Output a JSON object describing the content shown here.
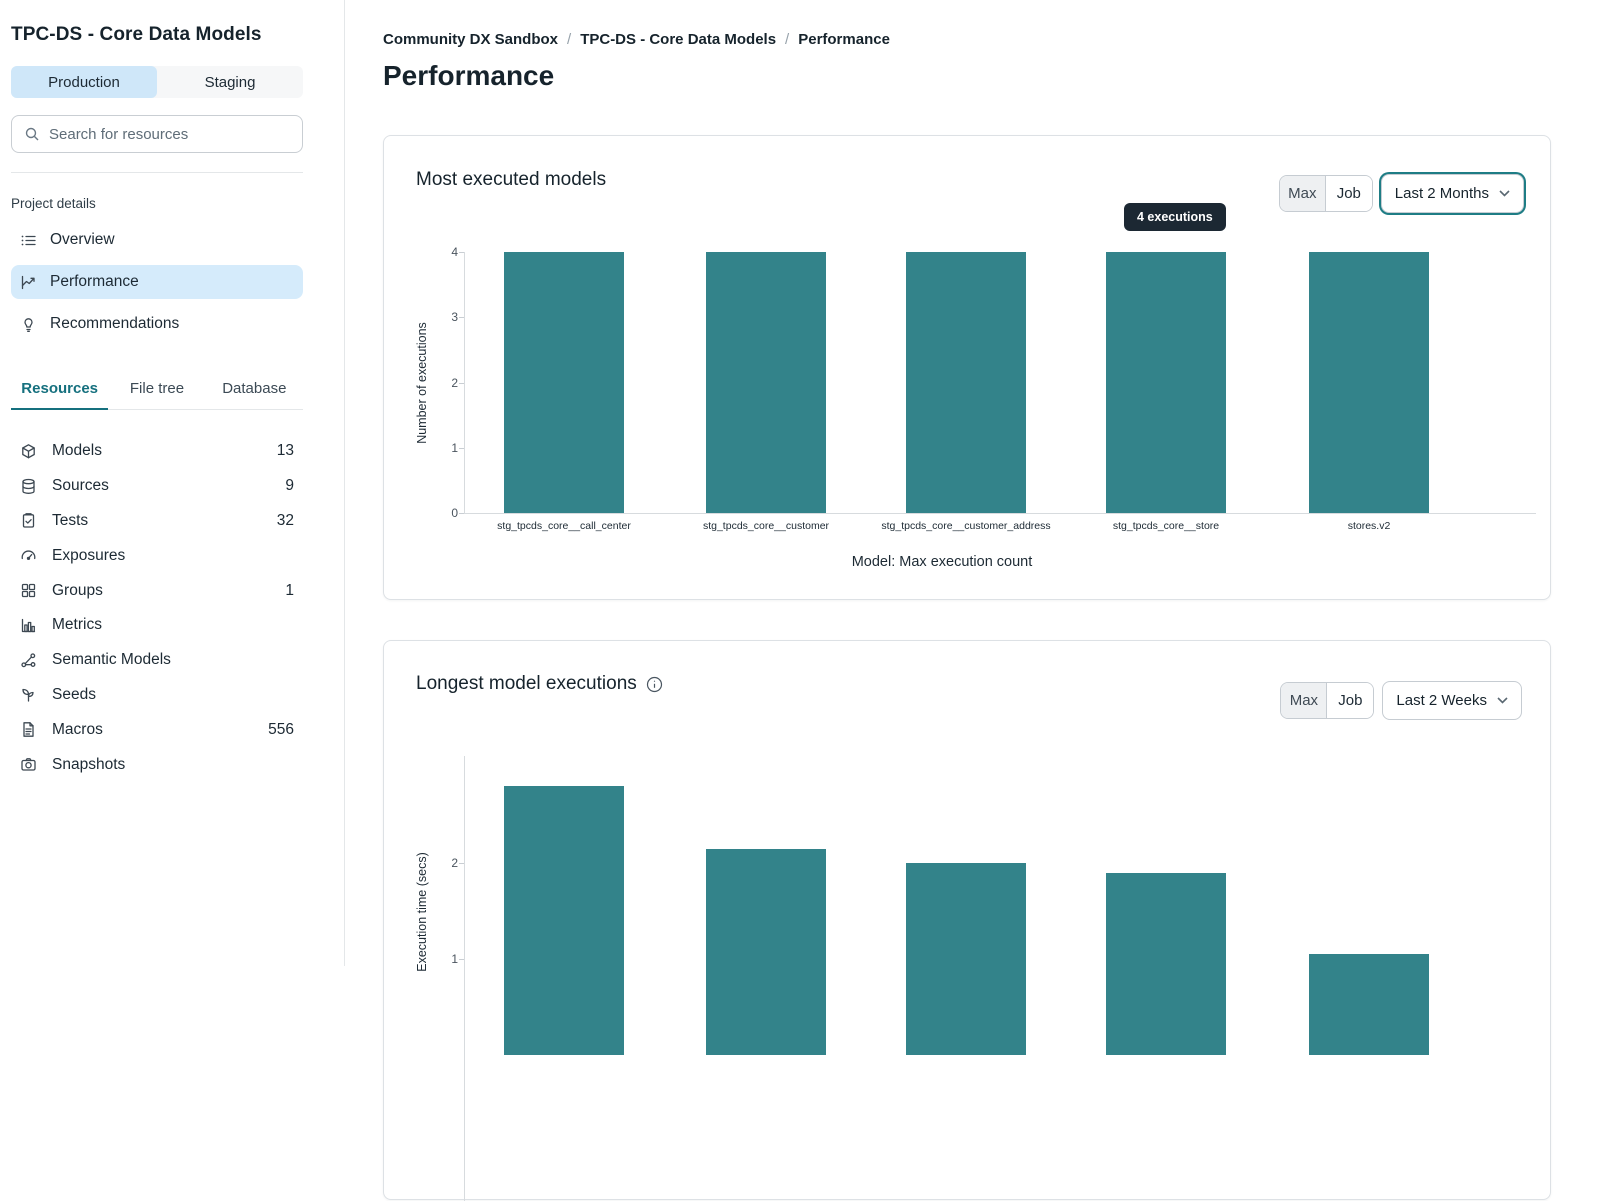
{
  "sidebar": {
    "title": "TPC-DS - Core Data Models",
    "env_toggle": {
      "production": "Production",
      "staging": "Staging"
    },
    "search": {
      "placeholder": "Search for resources"
    },
    "project_details": {
      "label": "Project details",
      "items": [
        {
          "label": "Overview",
          "icon": "list-icon",
          "active": false
        },
        {
          "label": "Performance",
          "icon": "line-chart-icon",
          "active": true
        },
        {
          "label": "Recommendations",
          "icon": "lightbulb-icon",
          "active": false
        }
      ]
    },
    "tabs": [
      {
        "label": "Resources",
        "active": true
      },
      {
        "label": "File tree",
        "active": false
      },
      {
        "label": "Database",
        "active": false
      }
    ],
    "resources": [
      {
        "label": "Models",
        "icon": "cube-icon",
        "count": "13"
      },
      {
        "label": "Sources",
        "icon": "database-icon",
        "count": "9"
      },
      {
        "label": "Tests",
        "icon": "clipboard-check-icon",
        "count": "32"
      },
      {
        "label": "Exposures",
        "icon": "gauge-icon",
        "count": ""
      },
      {
        "label": "Groups",
        "icon": "grid-icon",
        "count": "1"
      },
      {
        "label": "Metrics",
        "icon": "bar-chart-icon",
        "count": ""
      },
      {
        "label": "Semantic Models",
        "icon": "network-icon",
        "count": ""
      },
      {
        "label": "Seeds",
        "icon": "seedling-icon",
        "count": ""
      },
      {
        "label": "Macros",
        "icon": "document-icon",
        "count": "556"
      },
      {
        "label": "Snapshots",
        "icon": "camera-icon",
        "count": ""
      }
    ]
  },
  "breadcrumb": {
    "items": [
      "Community DX Sandbox",
      "TPC-DS - Core Data Models",
      "Performance"
    ]
  },
  "page_title": "Performance",
  "accent_colors": {
    "teal": "#15707e",
    "bar_teal": "#33838A",
    "active_blue": "#cfe7f9",
    "tooltip_bg": "#1c2833",
    "focus_ring": "#1e7d85"
  },
  "chart_data": [
    {
      "type": "bar",
      "title": "Most executed models",
      "categories": [
        "stg_tpcds_core__call_center",
        "stg_tpcds_core__customer",
        "stg_tpcds_core__customer_address",
        "stg_tpcds_core__store",
        "stores.v2"
      ],
      "values": [
        4,
        4,
        4,
        4,
        4
      ],
      "xlabel": "Model: Max execution count",
      "ylabel": "Number of executions",
      "ylim": [
        0,
        4
      ],
      "yticks": [
        0,
        1,
        2,
        3,
        4
      ],
      "bar_color": "#33838A",
      "grid": false,
      "tooltip": "4 executions",
      "controls": {
        "metric_options": [
          "Max",
          "Job"
        ],
        "selected_metric": "Max",
        "range_value": "Last 2 Months"
      }
    },
    {
      "type": "bar",
      "title": "Longest model executions",
      "values": [
        2.8,
        2.15,
        2.0,
        1.9,
        1.05
      ],
      "ylabel": "Execution time (secs)",
      "visible_yticks": [
        1,
        2
      ],
      "bar_color": "#33838A",
      "grid": false,
      "controls": {
        "metric_options": [
          "Max",
          "Job"
        ],
        "selected_metric": "Max",
        "range_value": "Last 2 Weeks"
      }
    }
  ]
}
